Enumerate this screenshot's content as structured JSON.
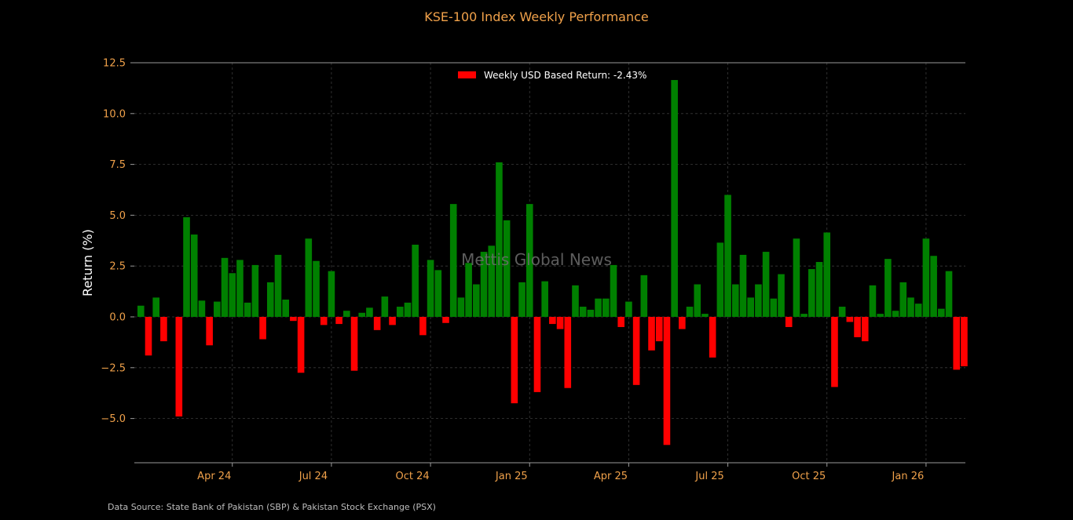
{
  "chart_data": {
    "type": "bar",
    "title": "KSE-100 Index Weekly Performance",
    "ylabel": "Return (%)",
    "xlabel": "",
    "ylim": [
      -7.2,
      12.5
    ],
    "yticks": [
      "12.5",
      "10.0",
      "7.5",
      "5.0",
      "2.5",
      "0.0",
      "−2.5",
      "−5.0"
    ],
    "ytick_values": [
      12.5,
      10.0,
      7.5,
      5.0,
      2.5,
      0.0,
      -2.5,
      -5.0
    ],
    "xtick_labels": [
      "Apr 24",
      "Jul 24",
      "Oct 24",
      "Jan 25",
      "Apr 25",
      "Jul 25",
      "Oct 25",
      "Jan 26"
    ],
    "xtick_weeks": [
      12,
      25,
      38,
      51,
      64,
      77,
      90,
      103
    ],
    "grid": true,
    "legend": {
      "label": "Weekly USD Based Return: -2.43%",
      "color": "#ff0000",
      "placement": "top-center"
    },
    "colors": {
      "positive": "#008000",
      "negative": "#ff0000",
      "title": "#f0a14a",
      "background": "#000000"
    },
    "values": [
      0.55,
      -1.9,
      0.95,
      -1.2,
      0.0,
      -4.9,
      4.9,
      4.05,
      0.8,
      -1.4,
      0.75,
      2.9,
      2.15,
      2.8,
      0.7,
      2.55,
      -1.1,
      1.7,
      3.05,
      0.85,
      -0.2,
      -2.75,
      3.85,
      2.75,
      -0.4,
      2.25,
      -0.35,
      0.3,
      -2.65,
      0.2,
      0.45,
      -0.65,
      1.0,
      -0.4,
      0.5,
      0.7,
      3.55,
      -0.9,
      2.8,
      2.3,
      -0.3,
      5.55,
      0.95,
      2.65,
      1.6,
      3.2,
      3.5,
      7.6,
      4.75,
      -4.25,
      1.7,
      5.55,
      -3.7,
      1.75,
      -0.35,
      -0.6,
      -3.5,
      1.55,
      0.5,
      0.35,
      0.9,
      0.9,
      2.55,
      -0.5,
      0.75,
      -3.35,
      2.05,
      -1.65,
      -1.2,
      -6.3,
      11.65,
      -0.6,
      0.5,
      1.6,
      0.15,
      -2.0,
      3.65,
      6.0,
      1.6,
      3.05,
      0.95,
      1.6,
      3.2,
      0.9,
      2.1,
      -0.5,
      3.85,
      0.15,
      2.35,
      2.7,
      4.15,
      -3.45,
      0.5,
      -0.25,
      -1.0,
      -1.2,
      1.55,
      0.15,
      2.85,
      0.3,
      1.7,
      0.95,
      0.65,
      3.85,
      3.0,
      0.4,
      2.25,
      -2.6,
      -2.43
    ]
  },
  "watermark": "Mettis Global News",
  "source": "Data Source: State Bank of Pakistan (SBP) & Pakistan Stock Exchange (PSX)"
}
